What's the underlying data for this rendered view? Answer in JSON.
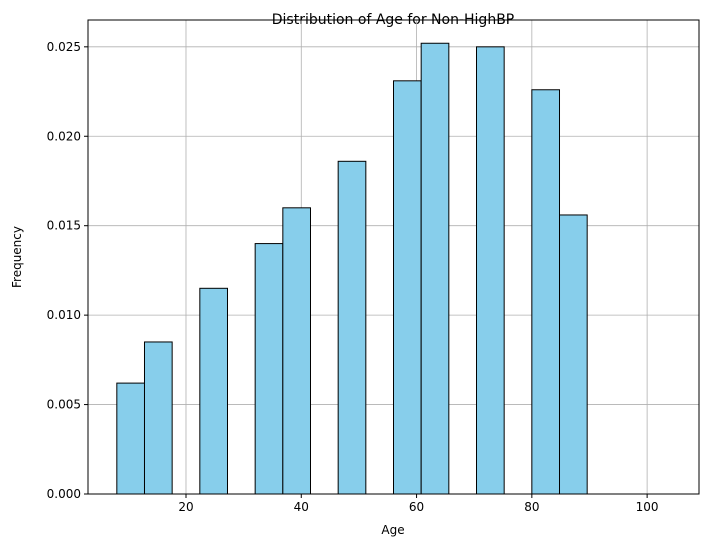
{
  "chart_data": {
    "type": "bar",
    "title": "Distribution of Age for Non-HighBP",
    "xlabel": "Age",
    "ylabel": "Frequency",
    "xlim": [
      3,
      109
    ],
    "ylim": [
      0,
      0.0265
    ],
    "xticks": [
      20,
      40,
      60,
      80,
      100
    ],
    "yticks": [
      0.0,
      0.005,
      0.01,
      0.015,
      0.02,
      0.025
    ],
    "ytick_labels": [
      "0.000",
      "0.005",
      "0.010",
      "0.015",
      "0.020",
      "0.025"
    ],
    "grid": true,
    "bar_color": "#87ceeb",
    "edge_color": "#000000",
    "bins": [
      {
        "x0": 8.0,
        "x1": 12.8,
        "value": 0.0062
      },
      {
        "x0": 12.8,
        "x1": 17.6,
        "value": 0.0085
      },
      {
        "x0": 17.6,
        "x1": 22.4,
        "value": 0.0
      },
      {
        "x0": 22.4,
        "x1": 27.2,
        "value": 0.0115
      },
      {
        "x0": 27.2,
        "x1": 32.0,
        "value": 0.0
      },
      {
        "x0": 32.0,
        "x1": 36.8,
        "value": 0.014
      },
      {
        "x0": 36.8,
        "x1": 41.6,
        "value": 0.016
      },
      {
        "x0": 41.6,
        "x1": 46.4,
        "value": 0.0
      },
      {
        "x0": 46.4,
        "x1": 51.2,
        "value": 0.0186
      },
      {
        "x0": 51.2,
        "x1": 56.0,
        "value": 0.0
      },
      {
        "x0": 56.0,
        "x1": 60.8,
        "value": 0.0231
      },
      {
        "x0": 60.8,
        "x1": 65.6,
        "value": 0.0252
      },
      {
        "x0": 65.6,
        "x1": 70.4,
        "value": 0.0
      },
      {
        "x0": 70.4,
        "x1": 75.2,
        "value": 0.025
      },
      {
        "x0": 75.2,
        "x1": 80.0,
        "value": 0.0
      },
      {
        "x0": 80.0,
        "x1": 84.8,
        "value": 0.0226
      },
      {
        "x0": 84.8,
        "x1": 89.6,
        "value": 0.0156
      },
      {
        "x0": 89.6,
        "x1": 94.4,
        "value": 0.0
      },
      {
        "x0": 94.4,
        "x1": 99.2,
        "value": 0.0
      },
      {
        "x0": 99.2,
        "x1": 104.0,
        "value": 0.0
      }
    ],
    "bin_overrides_note": ""
  }
}
